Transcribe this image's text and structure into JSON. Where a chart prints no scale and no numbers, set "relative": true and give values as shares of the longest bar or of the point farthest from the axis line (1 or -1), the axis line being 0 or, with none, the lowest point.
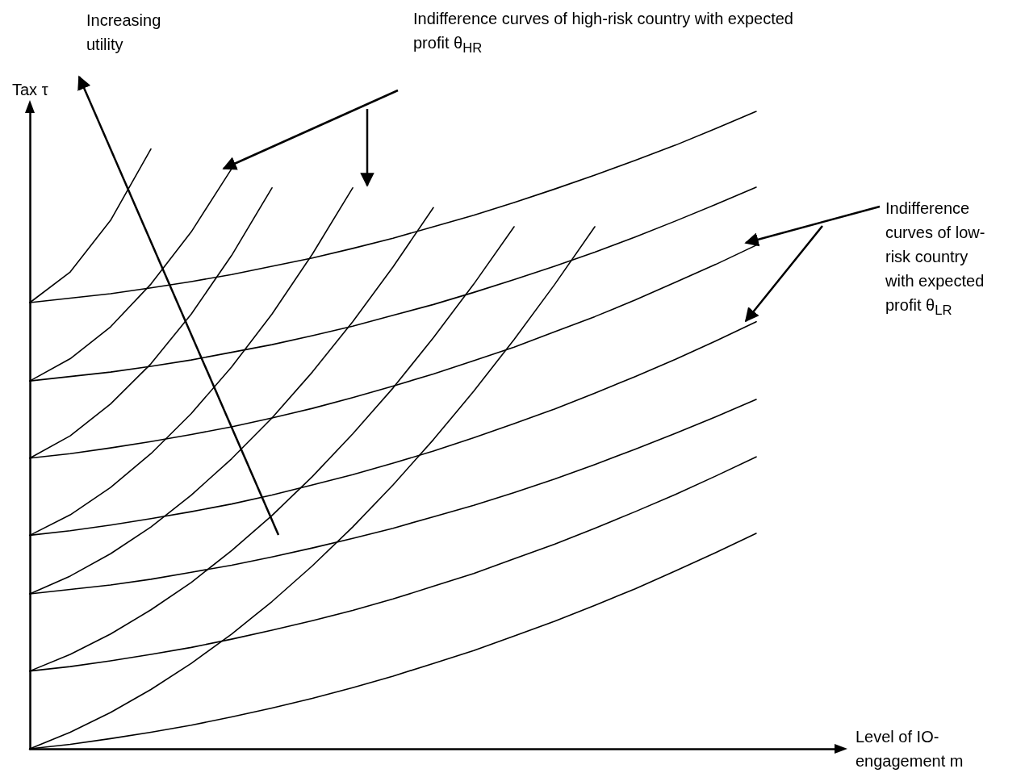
{
  "chart_data": {
    "type": "line",
    "relative": true,
    "xlabel": "Level of IO-engagement m",
    "ylabel": "Tax τ",
    "annotations": [
      "Increasing utility",
      "Indifference curves of high-risk country with expected profit θ$_{HR}$",
      "Indifference curves of low-risk country with expected profit θ$_{LR}$"
    ],
    "categories": [
      null,
      null,
      null,
      null,
      null,
      null,
      null,
      null,
      null,
      null,
      null,
      null,
      null,
      null,
      null,
      null,
      null,
      null,
      null,
      null,
      null
    ],
    "ylim": [
      0,
      1.0
    ],
    "tick_labels": false,
    "grid": false,
    "line_style": "solid",
    "series": [
      {
        "color": "#000000",
        "values": [
          0.7,
          0.707,
          0.714,
          0.723,
          0.733,
          0.744,
          0.757,
          0.77,
          0.785,
          0.801,
          0.819,
          0.837,
          0.857,
          0.878,
          0.9,
          0.923,
          0.947,
          0.973,
          1.0,
          null,
          null
        ]
      },
      {
        "color": "#000000",
        "values": [
          0.577,
          0.584,
          0.591,
          0.6,
          0.61,
          0.622,
          0.634,
          0.648,
          0.663,
          0.68,
          0.697,
          0.716,
          0.736,
          0.757,
          0.779,
          0.803,
          0.828,
          0.854,
          0.881,
          null,
          null
        ]
      },
      {
        "color": "#000000",
        "values": [
          0.456,
          0.463,
          0.472,
          0.482,
          0.493,
          0.505,
          0.519,
          0.534,
          0.551,
          0.569,
          0.588,
          0.609,
          0.63,
          0.654,
          0.678,
          0.704,
          0.732,
          0.76,
          0.79,
          null,
          null
        ]
      },
      {
        "color": "#000000",
        "values": [
          0.335,
          0.342,
          0.351,
          0.361,
          0.372,
          0.384,
          0.398,
          0.414,
          0.43,
          0.448,
          0.467,
          0.488,
          0.51,
          0.533,
          0.558,
          0.584,
          0.611,
          0.64,
          0.67,
          null,
          null
        ]
      },
      {
        "color": "#000000",
        "values": [
          0.243,
          0.25,
          0.257,
          0.266,
          0.277,
          0.288,
          0.301,
          0.315,
          0.33,
          0.346,
          0.364,
          0.382,
          0.402,
          0.423,
          0.446,
          0.47,
          0.495,
          0.521,
          0.548,
          null,
          null
        ]
      },
      {
        "color": "#000000",
        "values": [
          0.122,
          0.129,
          0.138,
          0.148,
          0.159,
          0.172,
          0.186,
          0.201,
          0.217,
          0.235,
          0.255,
          0.275,
          0.298,
          0.321,
          0.346,
          0.372,
          0.399,
          0.428,
          0.458,
          null,
          null
        ]
      },
      {
        "color": "#000000",
        "values": [
          0,
          0.007,
          0.016,
          0.026,
          0.037,
          0.05,
          0.064,
          0.079,
          0.096,
          0.114,
          0.134,
          0.154,
          0.177,
          0.2,
          0.225,
          0.251,
          0.279,
          0.308,
          0.338,
          null,
          null
        ]
      },
      {
        "color": "#000000",
        "values": [
          0.7,
          0.748,
          0.829,
          0.941,
          null,
          null,
          null,
          null,
          null,
          null,
          null,
          null,
          null,
          null,
          null,
          null,
          null,
          null,
          null,
          null,
          null
        ]
      },
      {
        "color": "#000000",
        "values": [
          0.577,
          0.612,
          0.662,
          0.729,
          0.811,
          0.91,
          null,
          null,
          null,
          null,
          null,
          null,
          null,
          null,
          null,
          null,
          null,
          null,
          null,
          null,
          null
        ]
      },
      {
        "color": "#000000",
        "values": [
          0.456,
          0.491,
          0.541,
          0.604,
          0.682,
          0.774,
          0.88,
          null,
          null,
          null,
          null,
          null,
          null,
          null,
          null,
          null,
          null,
          null,
          null,
          null,
          null
        ]
      },
      {
        "color": "#000000",
        "values": [
          0.335,
          0.367,
          0.41,
          0.463,
          0.526,
          0.599,
          0.682,
          0.776,
          0.88,
          null,
          null,
          null,
          null,
          null,
          null,
          null,
          null,
          null,
          null,
          null,
          null
        ]
      },
      {
        "color": "#000000",
        "values": [
          0.243,
          0.271,
          0.306,
          0.348,
          0.398,
          0.455,
          0.519,
          0.591,
          0.67,
          0.756,
          0.849,
          null,
          null,
          null,
          null,
          null,
          null,
          null,
          null,
          null,
          null
        ]
      },
      {
        "color": "#000000",
        "values": [
          0.122,
          0.148,
          0.18,
          0.218,
          0.261,
          0.311,
          0.366,
          0.427,
          0.494,
          0.566,
          0.645,
          0.729,
          0.819,
          null,
          null,
          null,
          null,
          null,
          null,
          null,
          null
        ]
      },
      {
        "color": "#000000",
        "values": [
          0,
          0.026,
          0.057,
          0.093,
          0.134,
          0.18,
          0.231,
          0.287,
          0.348,
          0.414,
          0.485,
          0.561,
          0.642,
          0.728,
          0.819,
          null,
          null,
          null,
          null,
          null,
          null
        ]
      }
    ]
  }
}
